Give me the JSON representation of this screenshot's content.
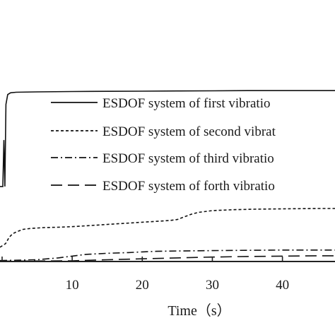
{
  "chart_data": {
    "type": "line",
    "title": "",
    "xlabel": "Time（s）",
    "ylabel": "",
    "xlim": [
      -0.3,
      47.5
    ],
    "ylim": [
      0,
      1
    ],
    "x_ticks": [
      10,
      20,
      30,
      40
    ],
    "x_tick_labels": [
      "10",
      "20",
      "30",
      "40"
    ],
    "grid": false,
    "legend_position": "top-right",
    "series": [
      {
        "name": "ESDOF system of first vibratio",
        "style": "solid",
        "x": [
          -0.3,
          0.1,
          0.25,
          0.4,
          0.55,
          0.8,
          1.2,
          2,
          5,
          10,
          15,
          20,
          25,
          30,
          35,
          40,
          45,
          47.5
        ],
        "y": [
          0.42,
          0.42,
          0.68,
          0.42,
          0.88,
          0.935,
          0.945,
          0.948,
          0.95,
          0.952,
          0.953,
          0.954,
          0.955,
          0.956,
          0.957,
          0.957,
          0.957,
          0.957
        ]
      },
      {
        "name": "ESDOF system of second vibrat",
        "style": "dashed-short",
        "x": [
          -0.3,
          0.5,
          1,
          1.5,
          2,
          3,
          4,
          6,
          8,
          10,
          12,
          14,
          16,
          18,
          20,
          22,
          24,
          25,
          26,
          27,
          28,
          30,
          33,
          36,
          40,
          45,
          47.5
        ],
        "y": [
          0.08,
          0.1,
          0.135,
          0.155,
          0.165,
          0.18,
          0.185,
          0.19,
          0.192,
          0.195,
          0.2,
          0.205,
          0.21,
          0.215,
          0.22,
          0.225,
          0.23,
          0.235,
          0.25,
          0.265,
          0.275,
          0.285,
          0.29,
          0.293,
          0.295,
          0.297,
          0.297
        ]
      },
      {
        "name": "ESDOF system of third vibratio",
        "style": "dash-dot",
        "x": [
          -0.3,
          5,
          8,
          10,
          12,
          15,
          18,
          20,
          22,
          25,
          28,
          30,
          33,
          36,
          40,
          45,
          47.5
        ],
        "y": [
          0.005,
          0.01,
          0.02,
          0.03,
          0.04,
          0.046,
          0.05,
          0.054,
          0.057,
          0.059,
          0.06,
          0.061,
          0.062,
          0.063,
          0.064,
          0.064,
          0.064
        ]
      },
      {
        "name": "ESDOF system of forth vibratio",
        "style": "dashed-long",
        "x": [
          -0.3,
          10,
          15,
          20,
          25,
          30,
          35,
          40,
          45,
          47.5
        ],
        "y": [
          0.002,
          0.004,
          0.01,
          0.015,
          0.02,
          0.025,
          0.028,
          0.03,
          0.032,
          0.032
        ]
      }
    ]
  }
}
